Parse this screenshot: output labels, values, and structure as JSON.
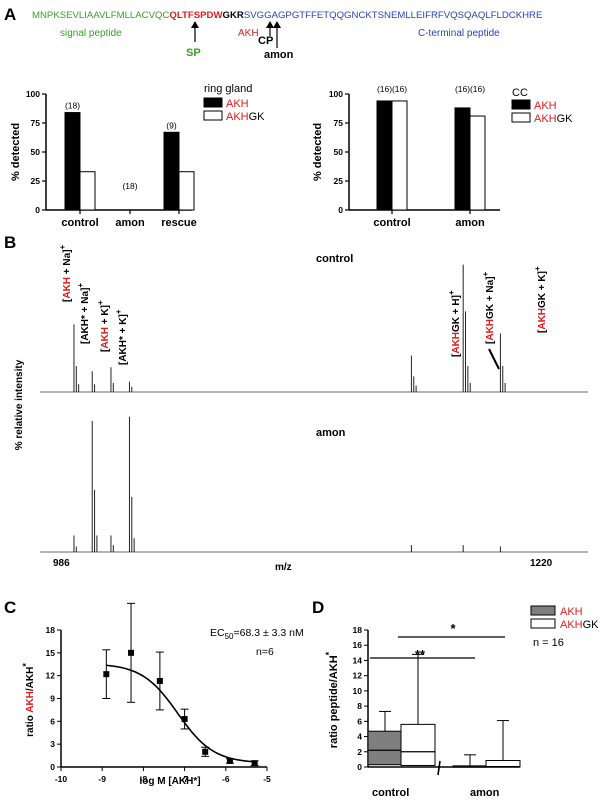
{
  "panel_a": {
    "letter": "A",
    "sequence": {
      "signal": "MNPKSEVLIAAVLFMLLACVQC",
      "akh": "QLTFSPDW",
      "gkr": "GKR",
      "cterm": "SVGGAGPGTFFETQQGNCKTSNEMLLEIFRFVQSQAQLFLDCKHRE"
    },
    "region_labels": {
      "signal": "signal peptide",
      "akh": "AKH",
      "cterm": "C-terminal peptide"
    },
    "arrows": {
      "sp": "SP",
      "cp": "CP",
      "amon": "amon"
    },
    "colors": {
      "signal": "#3aa02a",
      "akh": "#e41a1c",
      "cterm": "#2a3fbf",
      "sp": "#3aa02a"
    }
  },
  "panel_b": {
    "letter": "B",
    "ylabel": "% relative intensity",
    "xlabel": "m/z",
    "xmin_label": "986",
    "xmax_label": "1220",
    "top_label": "control",
    "bottom_label": "amon",
    "peak_labels": {
      "p1": [
        "[",
        "AKH",
        " + Na]",
        "+"
      ],
      "p2": [
        "[AKH* + Na]",
        "+"
      ],
      "p3": [
        "[",
        "AKH",
        " + K]",
        "+"
      ],
      "p4": [
        "[AKH* + K]",
        "+"
      ],
      "p5": [
        "[",
        "AKH",
        "GK + H]",
        "+"
      ],
      "p6": [
        "[",
        "AKH",
        "GK + Na]",
        "+"
      ],
      "p7": [
        "[",
        "AKH",
        "GK + K]",
        "+"
      ]
    }
  },
  "panel_c": {
    "letter": "C",
    "ylabel_parts": [
      "ratio ",
      "AKH",
      "/AKH",
      "*"
    ],
    "xlabel": "log M [AKH*]",
    "ec50_prefix": "EC",
    "ec50_sub": "50",
    "ec50_value": "=68.3 ± 3.3 nM",
    "n_label": "n=6"
  },
  "panel_d": {
    "letter": "D",
    "ylabel": "ratio peptide/AKH",
    "ylabel_sup": "*",
    "groups": [
      "control",
      "amon"
    ],
    "legend": [
      "AKH",
      "AKHGK"
    ],
    "n_label": "n  = 16",
    "sig_high": "**",
    "sig_low": "*"
  },
  "chart_data": [
    {
      "type": "bar",
      "panel": "A-left",
      "legend_title": "ring gland",
      "categories": [
        "control",
        "amon",
        "rescue"
      ],
      "n_labels": [
        "(18)",
        "(18)",
        "(9)"
      ],
      "series": [
        {
          "name": "AKH",
          "values": [
            84,
            0,
            67
          ],
          "color": "#000000"
        },
        {
          "name": "AKHGK",
          "values": [
            33,
            0,
            33
          ],
          "color": "#ffffff"
        }
      ],
      "ylabel": "% detected",
      "ylim": [
        0,
        100
      ],
      "yticks": [
        0,
        25,
        50,
        75,
        100
      ],
      "legend_position": "top-right"
    },
    {
      "type": "bar",
      "panel": "A-right",
      "legend_title": "CC",
      "categories": [
        "control",
        "amon"
      ],
      "n_labels": [
        "(16)",
        "(16)",
        "(16)",
        "(16)"
      ],
      "series": [
        {
          "name": "AKH",
          "values": [
            94,
            88
          ],
          "color": "#000000"
        },
        {
          "name": "AKHGK",
          "values": [
            94,
            81
          ],
          "color": "#ffffff"
        }
      ],
      "ylabel": "% detected",
      "ylim": [
        0,
        100
      ],
      "yticks": [
        0,
        25,
        50,
        75,
        100
      ],
      "legend_position": "top-right"
    },
    {
      "type": "line",
      "panel": "B-control",
      "label": "control",
      "x_range": [
        986,
        1220
      ],
      "peaks": [
        {
          "mz": 1000.5,
          "intensity": 0.52
        },
        {
          "mz": 1001.5,
          "intensity": 0.2
        },
        {
          "mz": 1002.5,
          "intensity": 0.06
        },
        {
          "mz": 1008.3,
          "intensity": 0.16
        },
        {
          "mz": 1009.3,
          "intensity": 0.06
        },
        {
          "mz": 1016.3,
          "intensity": 0.19
        },
        {
          "mz": 1017.3,
          "intensity": 0.07
        },
        {
          "mz": 1024.2,
          "intensity": 0.08
        },
        {
          "mz": 1025.2,
          "intensity": 0.04
        },
        {
          "mz": 1144.6,
          "intensity": 0.28
        },
        {
          "mz": 1145.6,
          "intensity": 0.12
        },
        {
          "mz": 1146.6,
          "intensity": 0.05
        },
        {
          "mz": 1166.7,
          "intensity": 0.98
        },
        {
          "mz": 1167.7,
          "intensity": 0.62
        },
        {
          "mz": 1168.7,
          "intensity": 0.2
        },
        {
          "mz": 1169.7,
          "intensity": 0.07
        },
        {
          "mz": 1182.6,
          "intensity": 0.45
        },
        {
          "mz": 1183.6,
          "intensity": 0.2
        },
        {
          "mz": 1184.6,
          "intensity": 0.07
        }
      ]
    },
    {
      "type": "line",
      "panel": "B-amon",
      "label": "amon",
      "x_range": [
        986,
        1220
      ],
      "peaks": [
        {
          "mz": 1000.5,
          "intensity": 0.12
        },
        {
          "mz": 1001.5,
          "intensity": 0.04
        },
        {
          "mz": 1008.3,
          "intensity": 0.95
        },
        {
          "mz": 1009.3,
          "intensity": 0.45
        },
        {
          "mz": 1010.3,
          "intensity": 0.12
        },
        {
          "mz": 1016.3,
          "intensity": 0.12
        },
        {
          "mz": 1017.3,
          "intensity": 0.05
        },
        {
          "mz": 1024.2,
          "intensity": 0.98
        },
        {
          "mz": 1025.2,
          "intensity": 0.4
        },
        {
          "mz": 1026.2,
          "intensity": 0.1
        },
        {
          "mz": 1144.6,
          "intensity": 0.05
        },
        {
          "mz": 1166.7,
          "intensity": 0.05
        },
        {
          "mz": 1182.6,
          "intensity": 0.04
        }
      ]
    },
    {
      "type": "scatter",
      "panel": "C",
      "x": [
        -8.9,
        -8.3,
        -7.6,
        -7.0,
        -6.5,
        -5.9,
        -5.3
      ],
      "y": [
        12.2,
        15.0,
        11.3,
        6.3,
        2.0,
        0.8,
        0.5
      ],
      "error": [
        3.2,
        6.5,
        3.8,
        1.3,
        0.6,
        0.3,
        0.3
      ],
      "fit": {
        "top": 13.6,
        "bottom": 0.5,
        "logEC50": -7.166
      },
      "xlim": [
        -10,
        -5
      ],
      "ylim": [
        0,
        18
      ],
      "xticks": [
        -10,
        -9,
        -8,
        -7,
        -6,
        -5
      ],
      "yticks": [
        0,
        3,
        6,
        9,
        12,
        15,
        18
      ]
    },
    {
      "type": "box",
      "panel": "D",
      "ylim": [
        0,
        18
      ],
      "yticks": [
        0,
        2,
        4,
        6,
        8,
        10,
        12,
        14,
        16,
        18
      ],
      "boxes": [
        {
          "group": "control",
          "series": "AKH",
          "min": 0,
          "q1": 0.3,
          "median": 2.2,
          "q3": 4.7,
          "max": 7.3,
          "fill": "#7f7f7f"
        },
        {
          "group": "control",
          "series": "AKHGK",
          "min": 0,
          "q1": 0.2,
          "median": 2.0,
          "q3": 5.6,
          "max": 14.8,
          "fill": "#ffffff"
        },
        {
          "group": "amon",
          "series": "AKH",
          "min": 0,
          "q1": 0.0,
          "median": 0.0,
          "q3": 0.15,
          "max": 1.6,
          "fill": "#7f7f7f"
        },
        {
          "group": "amon",
          "series": "AKHGK",
          "min": 0,
          "q1": 0.0,
          "median": 0.05,
          "q3": 0.85,
          "max": 6.1,
          "fill": "#ffffff"
        }
      ]
    }
  ]
}
